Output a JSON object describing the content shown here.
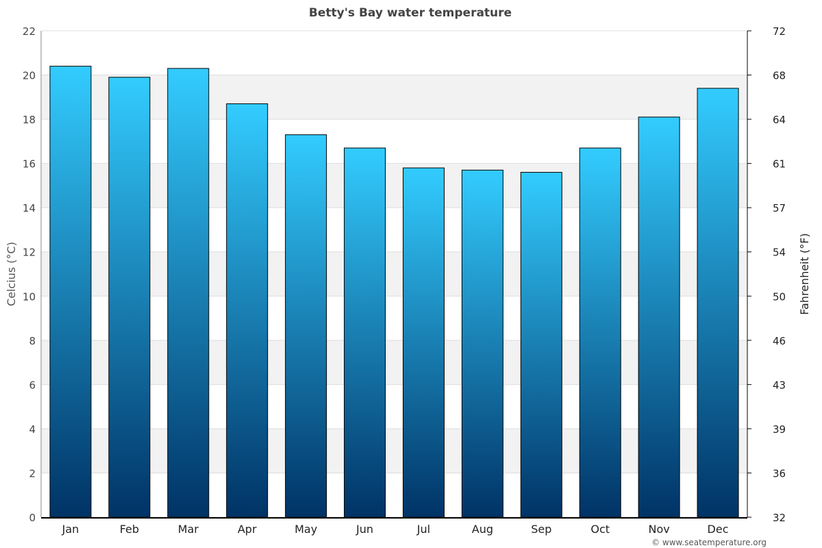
{
  "chart_data": {
    "type": "bar",
    "title": "Betty's Bay water temperature",
    "ylabel": "Celcius (°C)",
    "y2label": "Fahrenheit (°F)",
    "xlabel": "",
    "categories": [
      "Jan",
      "Feb",
      "Mar",
      "Apr",
      "May",
      "Jun",
      "Jul",
      "Aug",
      "Sep",
      "Oct",
      "Nov",
      "Dec"
    ],
    "values": [
      20.4,
      19.9,
      20.3,
      18.7,
      17.3,
      16.7,
      15.8,
      15.7,
      15.6,
      16.7,
      18.1,
      19.4
    ],
    "ylim": [
      0,
      22
    ],
    "yticks": [
      0,
      2,
      4,
      6,
      8,
      10,
      12,
      14,
      16,
      18,
      20,
      22
    ],
    "y2ticks": [
      "32",
      "36",
      "39",
      "43",
      "46",
      "50",
      "54",
      "57",
      "61",
      "64",
      "68",
      "72"
    ],
    "grid": true,
    "legend": "none",
    "colors": {
      "bar_top": "#33ccff",
      "bar_bottom": "#003366",
      "band": "#f2f2f2"
    }
  },
  "credit": "© www.seatemperature.org"
}
